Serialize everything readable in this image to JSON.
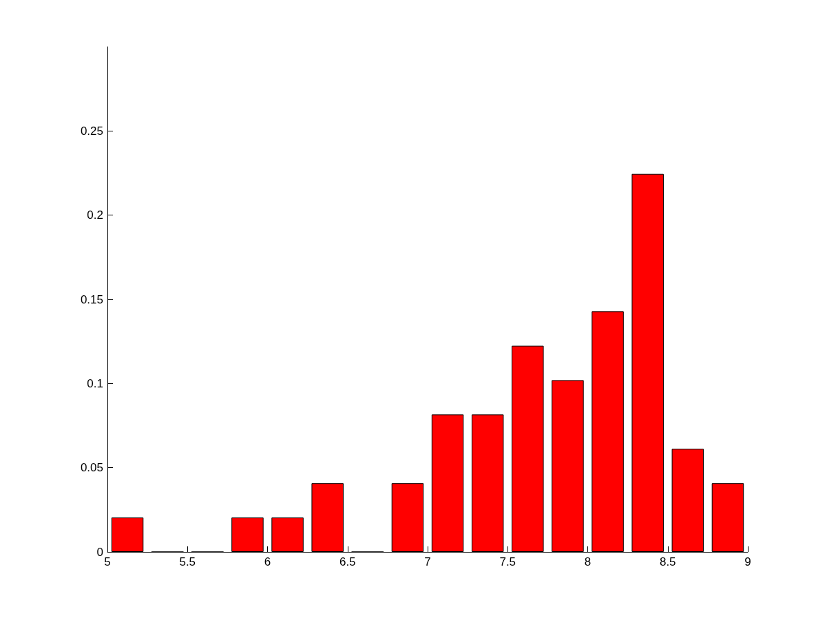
{
  "chart_data": {
    "type": "bar",
    "x": [
      5.125,
      5.375,
      5.625,
      5.875,
      6.125,
      6.375,
      6.625,
      6.875,
      7.125,
      7.375,
      7.625,
      7.875,
      8.125,
      8.375,
      8.625,
      8.875
    ],
    "values": [
      0.0204,
      0,
      0,
      0.0204,
      0.0204,
      0.0408,
      0,
      0.0408,
      0.0816,
      0.0816,
      0.1224,
      0.102,
      0.1429,
      0.2245,
      0.0612,
      0.0408
    ],
    "color": "#ff0000",
    "xlim": [
      5,
      9
    ],
    "xticks": [
      5,
      5.5,
      6,
      6.5,
      7,
      7.5,
      8,
      8.5,
      9
    ],
    "ylim": [
      0,
      0.3
    ],
    "yticks": [
      0,
      0.05,
      0.1,
      0.15,
      0.2,
      0.25
    ],
    "grid": false
  }
}
